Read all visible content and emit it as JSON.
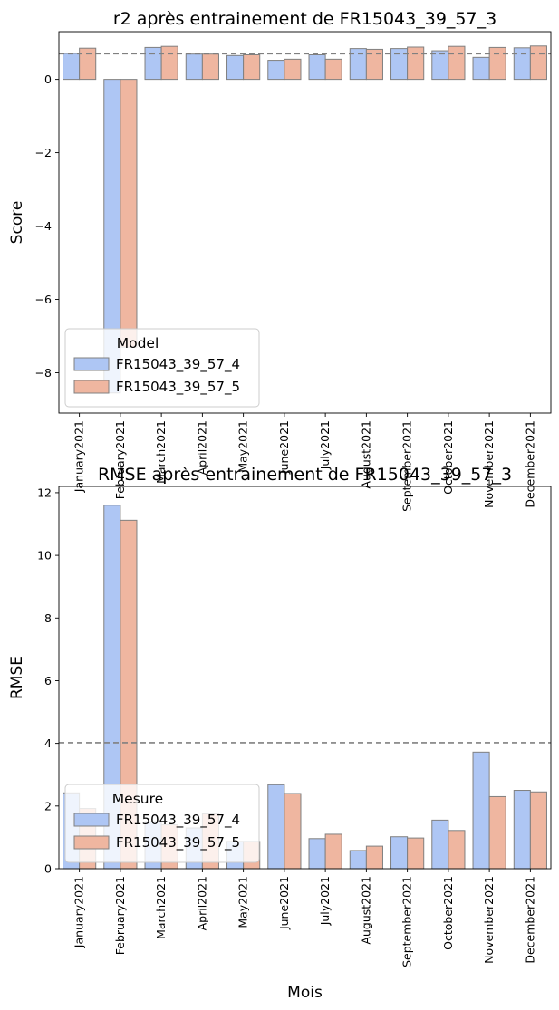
{
  "chart_data": [
    {
      "type": "bar",
      "title": "r2 après entrainement de FR15043_39_57_3",
      "ylabel": "Score",
      "xlabel": "",
      "categories": [
        "January2021",
        "February2021",
        "March2021",
        "April2021",
        "May2021",
        "June2021",
        "July2021",
        "August2021",
        "September2021",
        "October2021",
        "November2021",
        "December2021"
      ],
      "yticks": [
        0,
        -2,
        -4,
        -6,
        -8
      ],
      "ylim": [
        -9.1,
        1.3
      ],
      "reference_line": 0.7,
      "legend": {
        "title": "Model",
        "placement": "lower-left"
      },
      "series": [
        {
          "name": "FR15043_39_57_4",
          "color": "#aec6f4",
          "values": [
            0.71,
            -8.55,
            0.87,
            0.69,
            0.65,
            0.52,
            0.67,
            0.84,
            0.84,
            0.78,
            0.6,
            0.86
          ]
        },
        {
          "name": "FR15043_39_57_5",
          "color": "#efb6a0",
          "values": [
            0.85,
            -7.3,
            0.9,
            0.69,
            0.67,
            0.55,
            0.55,
            0.82,
            0.88,
            0.9,
            0.87,
            0.91
          ]
        }
      ]
    },
    {
      "type": "bar",
      "title": "RMSE après entrainement de FR15043_39_57_3",
      "ylabel": "RMSE",
      "xlabel": "Mois",
      "categories": [
        "January2021",
        "February2021",
        "March2021",
        "April2021",
        "May2021",
        "June2021",
        "July2021",
        "August2021",
        "September2021",
        "October2021",
        "November2021",
        "December2021"
      ],
      "yticks": [
        0,
        2,
        4,
        6,
        8,
        10,
        12
      ],
      "ylim": [
        0,
        12.2
      ],
      "reference_line": 4.02,
      "legend": {
        "title": "Mesure",
        "placement": "lower-left"
      },
      "series": [
        {
          "name": "FR15043_39_57_4",
          "color": "#aec6f4",
          "values": [
            2.42,
            11.6,
            1.5,
            1.3,
            0.87,
            2.68,
            0.96,
            0.58,
            1.02,
            1.55,
            3.72,
            2.5
          ]
        },
        {
          "name": "FR15043_39_57_5",
          "color": "#efb6a0",
          "values": [
            1.92,
            11.12,
            1.4,
            1.75,
            0.87,
            2.4,
            1.1,
            0.72,
            0.98,
            1.22,
            2.3,
            2.45
          ]
        }
      ]
    }
  ]
}
